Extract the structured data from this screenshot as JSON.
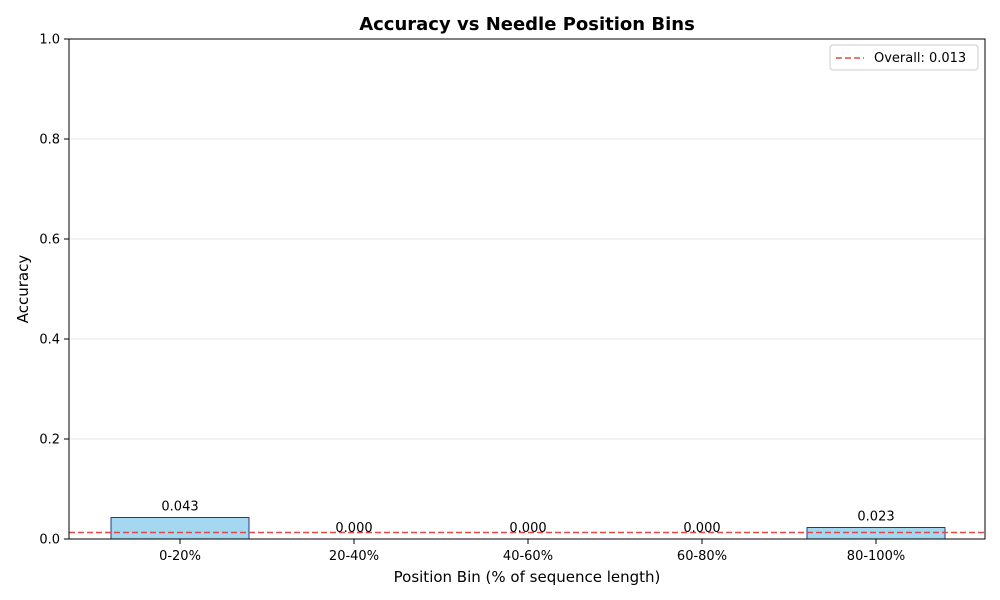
{
  "chart_data": {
    "type": "bar",
    "title": "Accuracy vs Needle Position Bins",
    "xlabel": "Position Bin (% of sequence length)",
    "ylabel": "Accuracy",
    "categories": [
      "0-20%",
      "20-40%",
      "40-60%",
      "60-80%",
      "80-100%"
    ],
    "values": [
      0.043,
      0.0,
      0.0,
      0.0,
      0.023
    ],
    "value_labels": [
      "0.043",
      "0.000",
      "0.000",
      "0.000",
      "0.023"
    ],
    "ylim": [
      0,
      1.0
    ],
    "yticks": [
      0.0,
      0.2,
      0.4,
      0.6,
      0.8,
      1.0
    ],
    "ytick_labels": [
      "0.0",
      "0.2",
      "0.4",
      "0.6",
      "0.8",
      "1.0"
    ],
    "grid": "horizontal",
    "reference_line": {
      "value": 0.013,
      "label": "Overall: 0.013",
      "style": "dashed"
    },
    "legend": {
      "placement": "top-right",
      "entries": [
        "Overall: 0.013"
      ]
    },
    "colors": {
      "bar_fill": "#a3d8f0",
      "bar_edge": "#1f3c88",
      "reference_line": "#e24a4a",
      "grid": "#e6e6e6",
      "axis": "#000000"
    }
  }
}
